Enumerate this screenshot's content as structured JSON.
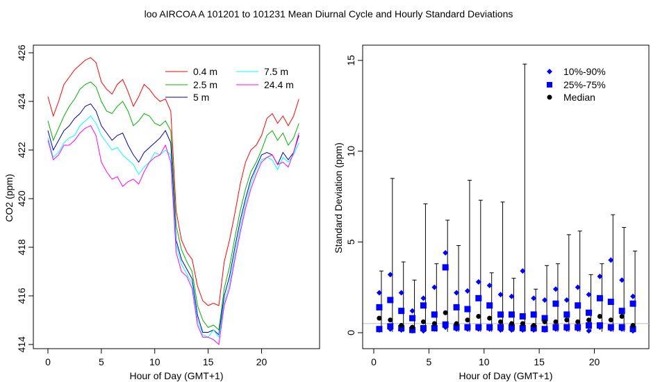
{
  "title": "loo   AIRCOA A   101201 to 101231   Mean Diurnal Cycle and Hourly Standard Deviations",
  "chart_data": [
    {
      "type": "line",
      "xlabel": "Hour of Day (GMT+1)",
      "ylabel": "CO2 (ppm)",
      "xlim": [
        0,
        24
      ],
      "ylim": [
        414,
        426
      ],
      "xticks": [
        "0",
        "5",
        "10",
        "15",
        "20"
      ],
      "yticks": [
        "414",
        "416",
        "418",
        "420",
        "422",
        "424",
        "426"
      ],
      "legend_position": "top-right",
      "grid": false,
      "x": [
        0.0,
        0.5,
        1.0,
        1.5,
        2.0,
        2.5,
        3.0,
        3.5,
        4.0,
        4.5,
        5.0,
        5.5,
        6.0,
        6.5,
        7.0,
        7.5,
        8.0,
        8.5,
        9.0,
        9.5,
        10.0,
        10.5,
        11.0,
        11.5,
        12.0,
        12.5,
        13.0,
        13.5,
        14.0,
        14.5,
        15.0,
        15.5,
        16.0,
        16.5,
        17.0,
        17.5,
        18.0,
        18.5,
        19.0,
        19.5,
        20.0,
        20.5,
        21.0,
        21.5,
        22.0,
        22.5,
        23.0,
        23.5
      ],
      "series": [
        {
          "name": "0.4 m",
          "color": "#ff0000",
          "values": [
            424.2,
            423.4,
            424.0,
            424.7,
            425.0,
            425.3,
            425.5,
            425.7,
            425.8,
            425.6,
            424.8,
            424.5,
            424.3,
            424.7,
            424.9,
            424.4,
            423.8,
            424.2,
            424.7,
            424.5,
            424.2,
            424.0,
            424.1,
            423.6,
            419.5,
            418.3,
            417.8,
            417.5,
            416.4,
            415.8,
            415.6,
            415.7,
            415.6,
            417.4,
            418.3,
            419.4,
            420.6,
            421.5,
            422.0,
            422.2,
            422.6,
            423.3,
            423.5,
            423.1,
            423.4,
            423.0,
            423.4,
            424.1
          ]
        },
        {
          "name": "2.5 m",
          "color": "#00b000",
          "values": [
            423.2,
            422.4,
            422.9,
            423.4,
            423.8,
            424.1,
            424.5,
            424.7,
            424.8,
            424.6,
            424.0,
            423.6,
            423.5,
            423.8,
            424.0,
            423.6,
            423.0,
            423.2,
            423.5,
            423.4,
            423.1,
            423.0,
            423.2,
            422.8,
            418.9,
            417.9,
            417.4,
            417.0,
            415.6,
            415.0,
            414.7,
            414.8,
            414.6,
            416.3,
            417.2,
            418.4,
            419.5,
            420.4,
            421.1,
            421.5,
            422.0,
            422.6,
            422.8,
            422.4,
            422.7,
            422.2,
            422.5,
            423.1
          ]
        },
        {
          "name": "5 m",
          "color": "#0000b0",
          "values": [
            422.8,
            422.0,
            422.4,
            422.8,
            423.0,
            423.3,
            423.5,
            423.8,
            423.9,
            423.6,
            423.0,
            422.7,
            422.4,
            422.6,
            422.7,
            422.2,
            421.8,
            421.5,
            421.9,
            422.1,
            422.3,
            422.5,
            422.8,
            422.3,
            418.3,
            417.5,
            417.1,
            416.7,
            415.2,
            414.5,
            414.5,
            414.6,
            414.4,
            416.0,
            416.8,
            418.0,
            419.1,
            420.0,
            420.8,
            421.3,
            421.8,
            421.9,
            421.8,
            421.4,
            421.9,
            421.6,
            421.9,
            422.6
          ]
        },
        {
          "name": "7.5 m",
          "color": "#00ffff",
          "values": [
            422.5,
            421.7,
            421.9,
            422.3,
            422.5,
            422.6,
            423.0,
            423.2,
            423.4,
            423.1,
            422.6,
            422.3,
            422.0,
            422.1,
            421.8,
            421.6,
            421.4,
            421.0,
            421.3,
            421.5,
            421.9,
            421.8,
            422.0,
            421.8,
            418.1,
            417.3,
            416.9,
            416.5,
            415.0,
            414.4,
            414.3,
            414.6,
            414.3,
            415.7,
            416.5,
            417.7,
            418.8,
            419.8,
            420.6,
            421.2,
            421.6,
            421.7,
            421.6,
            421.2,
            421.7,
            421.5,
            421.8,
            422.3
          ]
        },
        {
          "name": "24.4 m",
          "color": "#ff00ff",
          "values": [
            422.4,
            421.6,
            421.8,
            422.2,
            422.2,
            422.4,
            422.7,
            422.9,
            423.0,
            422.6,
            421.5,
            421.1,
            420.8,
            420.9,
            420.5,
            420.7,
            420.8,
            420.6,
            421.1,
            421.5,
            421.7,
            421.8,
            422.2,
            421.5,
            417.8,
            417.0,
            416.8,
            416.3,
            414.8,
            414.3,
            414.3,
            414.2,
            414.0,
            415.6,
            416.3,
            417.5,
            418.6,
            419.6,
            420.4,
            421.0,
            421.5,
            421.7,
            421.8,
            421.4,
            421.5,
            421.3,
            421.9,
            422.7
          ]
        }
      ]
    },
    {
      "type": "scatter",
      "xlabel": "Hour of Day (GMT+1)",
      "ylabel": "Standard Deviation (ppm)",
      "xlim": [
        0,
        24
      ],
      "ylim": [
        0,
        15
      ],
      "xticks": [
        "0",
        "5",
        "10",
        "15",
        "20"
      ],
      "yticks": [
        "0",
        "5",
        "10",
        "15"
      ],
      "legend_position": "top-right",
      "grid": false,
      "reference_line": 0.5,
      "x": [
        0.5,
        1.5,
        2.5,
        3.5,
        4.5,
        5.5,
        6.5,
        7.5,
        8.5,
        9.5,
        10.5,
        11.5,
        12.5,
        13.5,
        14.5,
        15.5,
        16.5,
        17.5,
        18.5,
        19.5,
        20.5,
        21.5,
        22.5,
        23.5
      ],
      "whisker_max": [
        3.4,
        8.5,
        3.9,
        2.9,
        7.1,
        3.8,
        6.2,
        4.8,
        8.4,
        7.3,
        3.3,
        7.2,
        3.0,
        14.8,
        2.4,
        3.7,
        3.8,
        5.4,
        5.6,
        3.2,
        3.8,
        6.5,
        5.8,
        4.5
      ],
      "series": [
        {
          "name": "10%-90%",
          "marker": "diamond",
          "color": "#0000ff",
          "values": [
            2.2,
            3.2,
            2.2,
            1.2,
            1.9,
            2.5,
            4.4,
            2.2,
            2.3,
            2.8,
            2.6,
            2.1,
            2.0,
            3.4,
            1.9,
            1.8,
            2.4,
            1.8,
            2.5,
            2.1,
            3.1,
            4.0,
            2.9,
            2.0
          ],
          "values_low": [
            0.15,
            0.2,
            0.15,
            0.1,
            0.1,
            0.2,
            0.3,
            0.2,
            0.2,
            0.2,
            0.2,
            0.15,
            0.15,
            0.15,
            0.15,
            0.15,
            0.2,
            0.2,
            0.2,
            0.1,
            0.3,
            0.2,
            0.2,
            0.1
          ]
        },
        {
          "name": "25%-75%",
          "marker": "square",
          "color": "#0000ff",
          "values": [
            1.4,
            1.8,
            1.2,
            0.8,
            1.5,
            1.0,
            3.6,
            1.4,
            1.3,
            1.9,
            1.5,
            1.0,
            1.0,
            0.9,
            1.0,
            0.8,
            1.6,
            1.0,
            1.5,
            1.1,
            1.9,
            1.7,
            1.2,
            1.6
          ],
          "values_low": [
            0.2,
            0.35,
            0.25,
            0.15,
            0.25,
            0.25,
            0.45,
            0.3,
            0.3,
            0.3,
            0.3,
            0.3,
            0.3,
            0.25,
            0.25,
            0.2,
            0.3,
            0.3,
            0.3,
            0.4,
            0.4,
            0.3,
            0.3,
            0.2
          ]
        },
        {
          "name": "Median",
          "marker": "dot",
          "color": "#000000",
          "values": [
            0.8,
            0.7,
            0.4,
            0.3,
            0.6,
            0.5,
            1.1,
            0.5,
            0.7,
            0.9,
            0.8,
            0.6,
            0.5,
            0.5,
            0.4,
            0.6,
            0.6,
            0.7,
            0.6,
            0.7,
            0.9,
            0.7,
            0.9,
            0.4
          ]
        }
      ]
    }
  ]
}
